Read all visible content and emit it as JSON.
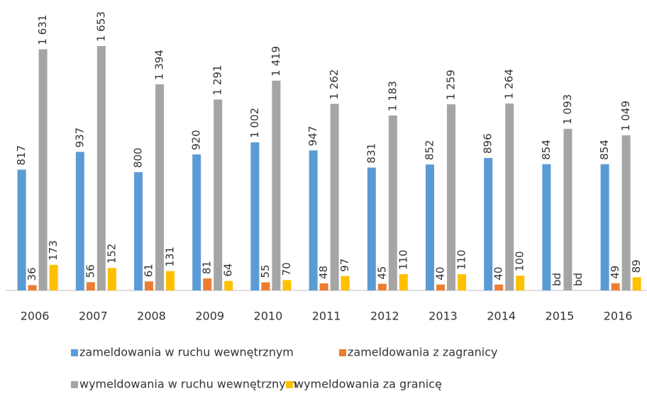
{
  "chart_data": {
    "type": "bar",
    "categories": [
      "2006",
      "2007",
      "2008",
      "2009",
      "2010",
      "2011",
      "2012",
      "2013",
      "2014",
      "2015",
      "2016"
    ],
    "series": [
      {
        "name": "zameldowania w ruchu wewnętrznym",
        "color": "#5b9bd5",
        "values": [
          817,
          937,
          800,
          920,
          1002,
          947,
          831,
          852,
          896,
          854,
          854
        ],
        "value_labels": [
          "817",
          "937",
          "800",
          "920",
          "1 002",
          "947",
          "831",
          "852",
          "896",
          "854",
          "854"
        ]
      },
      {
        "name": "zameldowania z zagranicy",
        "color": "#ed7d31",
        "values": [
          36,
          56,
          61,
          81,
          55,
          48,
          45,
          40,
          40,
          null,
          49
        ],
        "value_labels": [
          "36",
          "56",
          "61",
          "81",
          "55",
          "48",
          "45",
          "40",
          "40",
          "bd",
          "49"
        ]
      },
      {
        "name": "wymeldowania w ruchu wewnętrznym",
        "color": "#a5a5a5",
        "values": [
          1631,
          1653,
          1394,
          1291,
          1419,
          1262,
          1183,
          1259,
          1264,
          1093,
          1049
        ],
        "value_labels": [
          "1 631",
          "1 653",
          "1 394",
          "1 291",
          "1 419",
          "1 262",
          "1 183",
          "1 259",
          "1 264",
          "1 093",
          "1 049"
        ]
      },
      {
        "name": "wymeldowania za granicę",
        "color": "#ffc000",
        "values": [
          173,
          152,
          131,
          64,
          70,
          97,
          110,
          110,
          100,
          null,
          89
        ],
        "value_labels": [
          "173",
          "152",
          "131",
          "64",
          "70",
          "97",
          "110",
          "110",
          "100",
          "bd",
          "89"
        ]
      }
    ],
    "legend": "bottom"
  }
}
